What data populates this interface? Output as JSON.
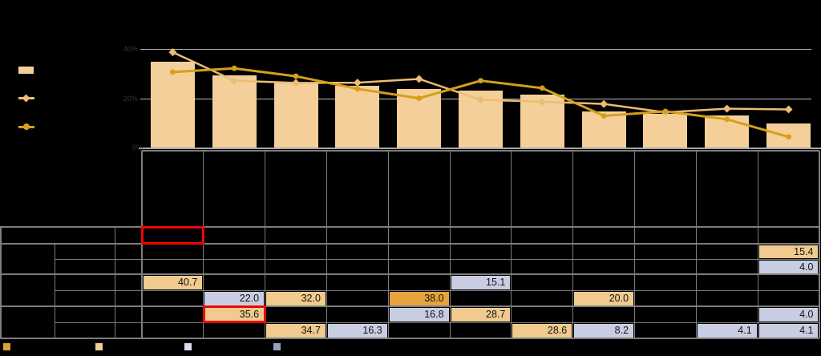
{
  "colors": {
    "background": "#000000",
    "bar_fill": "#f5cf9a",
    "line_light": "#ecbd71",
    "line_dark": "#d4a01a",
    "cell_tan": "#f0ca8e",
    "cell_lavender": "#c9cde2",
    "cell_orange": "#e7a33c",
    "red_annotation": "#ee0505",
    "chart_gridline": "#b7b7b7",
    "table_grid": "#7d7d7d",
    "cell_text": "#141414"
  },
  "chart_data": {
    "type": "bar",
    "categories": [
      "",
      "",
      "",
      "",
      "",
      "",
      "",
      "",
      "",
      "",
      ""
    ],
    "series": [
      {
        "name": "bar-series",
        "type": "bar",
        "color": "#f5cf9a",
        "values": [
          34.7,
          29.0,
          26.1,
          24.9,
          23.5,
          23.0,
          21.3,
          14.5,
          13.6,
          12.8,
          9.6
        ]
      },
      {
        "name": "line-series-light",
        "type": "line",
        "color": "#ecbd71",
        "marker": "diamond",
        "values": [
          38.5,
          27.0,
          26.1,
          26.2,
          27.7,
          19.3,
          18.5,
          17.6,
          14.2,
          15.7,
          15.4
        ]
      },
      {
        "name": "line-series-dark",
        "type": "line",
        "color": "#d4a01a",
        "marker": "circle",
        "values": [
          30.5,
          32.0,
          28.8,
          23.7,
          19.9,
          27.0,
          24.0,
          12.8,
          14.6,
          11.4,
          4.3
        ]
      }
    ],
    "ytick_labels": [
      "40%",
      "20%",
      "0%"
    ],
    "ytick_values": [
      40,
      20,
      0
    ],
    "ylim": [
      0,
      40
    ],
    "grid": "horizontal",
    "legend_position": "left"
  },
  "left_legend": {
    "items": [
      {
        "swatch": "bar",
        "color": "#f5cf9a",
        "label": ""
      },
      {
        "swatch": "line-diamond",
        "color": "#ecbd71",
        "label": ""
      },
      {
        "swatch": "line-circle",
        "color": "#d4a01a",
        "label": ""
      }
    ]
  },
  "table": {
    "columns": 11,
    "rows": [
      {
        "cells": [
          {
            "col": 1,
            "text": "",
            "highlight": "none",
            "red_box": true
          }
        ]
      },
      {
        "cells": [
          {
            "col": 11,
            "text": "15.4",
            "highlight": "tan"
          }
        ]
      },
      {
        "cells": [
          {
            "col": 11,
            "text": "4.0",
            "highlight": "lavender"
          }
        ]
      },
      {
        "cells": [
          {
            "col": 1,
            "text": "40.7",
            "highlight": "tan"
          },
          {
            "col": 6,
            "text": "15.1",
            "highlight": "lavender"
          }
        ]
      },
      {
        "cells": [
          {
            "col": 2,
            "text": "22.0",
            "highlight": "lavender"
          },
          {
            "col": 3,
            "text": "32.0",
            "highlight": "tan"
          },
          {
            "col": 5,
            "text": "38.0",
            "highlight": "orange"
          },
          {
            "col": 8,
            "text": "20.0",
            "highlight": "tan"
          }
        ]
      },
      {
        "cells": [
          {
            "col": 2,
            "text": "35.6",
            "highlight": "tan",
            "red_box": true
          },
          {
            "col": 5,
            "text": "16.8",
            "highlight": "lavender"
          },
          {
            "col": 6,
            "text": "28.7",
            "highlight": "tan"
          },
          {
            "col": 11,
            "text": "4.0",
            "highlight": "lavender"
          }
        ]
      },
      {
        "cells": [
          {
            "col": 3,
            "text": "34.7",
            "highlight": "tan"
          },
          {
            "col": 4,
            "text": "16.3",
            "highlight": "lavender"
          },
          {
            "col": 7,
            "text": "28.6",
            "highlight": "tan"
          },
          {
            "col": 8,
            "text": "8.2",
            "highlight": "lavender"
          },
          {
            "col": 10,
            "text": "4.1",
            "highlight": "lavender"
          },
          {
            "col": 11,
            "text": "4.1",
            "highlight": "lavender"
          }
        ]
      }
    ]
  },
  "bottom_legend": {
    "swatches": [
      {
        "color": "#dea035",
        "label": ""
      },
      {
        "color": "#f2cd96",
        "label": ""
      },
      {
        "color": "#d8dbeb",
        "label": ""
      },
      {
        "color": "#98a1ba",
        "label": ""
      }
    ]
  }
}
